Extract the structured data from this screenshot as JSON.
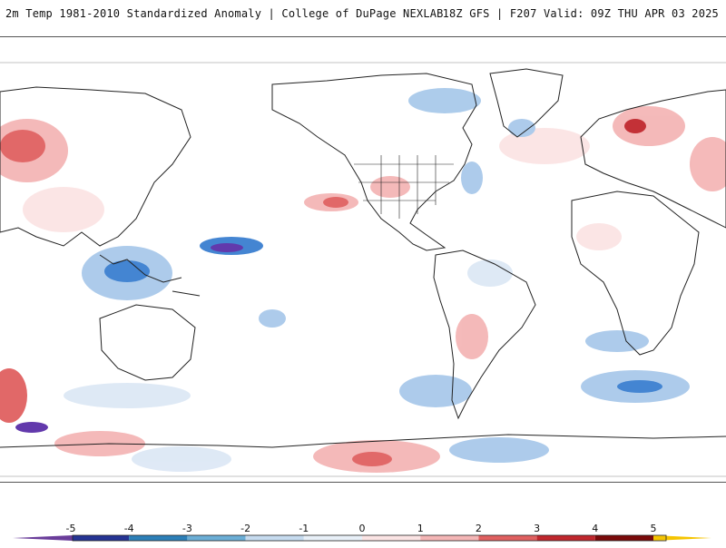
{
  "header": {
    "left": "2m Temp 1981-2010 Standardized Anomaly | College of DuPage NEXLAB",
    "right": "18Z GFS | F207 Valid: 09Z THU APR 03 2025"
  },
  "legend": {
    "ticks": [
      "-5",
      "-4",
      "-3",
      "-2",
      "-1",
      "0",
      "1",
      "2",
      "3",
      "4",
      "5"
    ],
    "colors": [
      "#6a3d9a",
      "#253494",
      "#2c7fb8",
      "#6baed6",
      "#c6dbef",
      "#e8f0f8",
      "#fbe4e4",
      "#f4b6b6",
      "#e06060",
      "#c0272d",
      "#7a0a0a",
      "#f5c400"
    ]
  },
  "map": {
    "anomaly_colors": {
      "strong_warm": "#c0272d",
      "warm": "#f4b6b6",
      "slight_warm": "#fbe4e4",
      "slight_cool": "#dde8f5",
      "cool": "#a9c9ea",
      "strong_cool": "#3a7fd0",
      "extreme_cool": "#5a2fa8"
    }
  }
}
